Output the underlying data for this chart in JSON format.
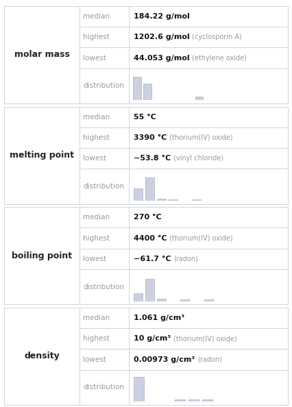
{
  "sections": [
    {
      "label": "molar mass",
      "rows": [
        {
          "key": "median",
          "bold_part": "184.22 g/mol",
          "extra": ""
        },
        {
          "key": "highest",
          "bold_part": "1202.6 g/mol",
          "extra": "(cyclosporin A)"
        },
        {
          "key": "lowest",
          "bold_part": "44.053 g/mol",
          "extra": "(ethylene oxide)"
        },
        {
          "key": "distribution",
          "bold_part": "",
          "extra": ""
        }
      ],
      "hist_bars": [
        0.85,
        0.6,
        0.0,
        0.0,
        0.0,
        0.0,
        0.12,
        0.0
      ],
      "hist_n_bins": 8
    },
    {
      "label": "melting point",
      "rows": [
        {
          "key": "median",
          "bold_part": "55 °C",
          "extra": ""
        },
        {
          "key": "highest",
          "bold_part": "3390 °C",
          "extra": "(thorium(IV) oxide)"
        },
        {
          "key": "lowest",
          "bold_part": "−53.8 °C",
          "extra": "(vinyl chloride)"
        },
        {
          "key": "distribution",
          "bold_part": "",
          "extra": ""
        }
      ],
      "hist_bars": [
        0.45,
        0.85,
        0.08,
        0.06,
        0.0,
        0.06,
        0.0
      ],
      "hist_n_bins": 7
    },
    {
      "label": "boiling point",
      "rows": [
        {
          "key": "median",
          "bold_part": "270 °C",
          "extra": ""
        },
        {
          "key": "highest",
          "bold_part": "4400 °C",
          "extra": "(thorium(IV) oxide)"
        },
        {
          "key": "lowest",
          "bold_part": "−61.7 °C",
          "extra": "(radon)"
        },
        {
          "key": "distribution",
          "bold_part": "",
          "extra": ""
        }
      ],
      "hist_bars": [
        0.3,
        0.82,
        0.08,
        0.0,
        0.07,
        0.0,
        0.07
      ],
      "hist_n_bins": 7
    },
    {
      "label": "density",
      "rows": [
        {
          "key": "median",
          "bold_part": "1.061 g/cm³",
          "extra": ""
        },
        {
          "key": "highest",
          "bold_part": "10 g/cm³",
          "extra": "(thorium(IV) oxide)"
        },
        {
          "key": "lowest",
          "bold_part": "0.00973 g/cm³",
          "extra": "(radon)"
        },
        {
          "key": "distribution",
          "bold_part": "",
          "extra": ""
        }
      ],
      "hist_bars": [
        0.92,
        0.0,
        0.0,
        0.08,
        0.08,
        0.08
      ],
      "hist_n_bins": 6
    }
  ],
  "bar_color": "#ccd0e0",
  "bar_edge_color": "#aab0c8",
  "bg_color": "#ffffff",
  "line_color": "#cccccc",
  "text_color_label": "#222222",
  "text_color_key": "#999999",
  "text_color_bold": "#111111",
  "text_color_extra": "#999999",
  "font_size_label": 9,
  "font_size_key": 7.5,
  "font_size_value": 8,
  "font_size_extra": 7
}
